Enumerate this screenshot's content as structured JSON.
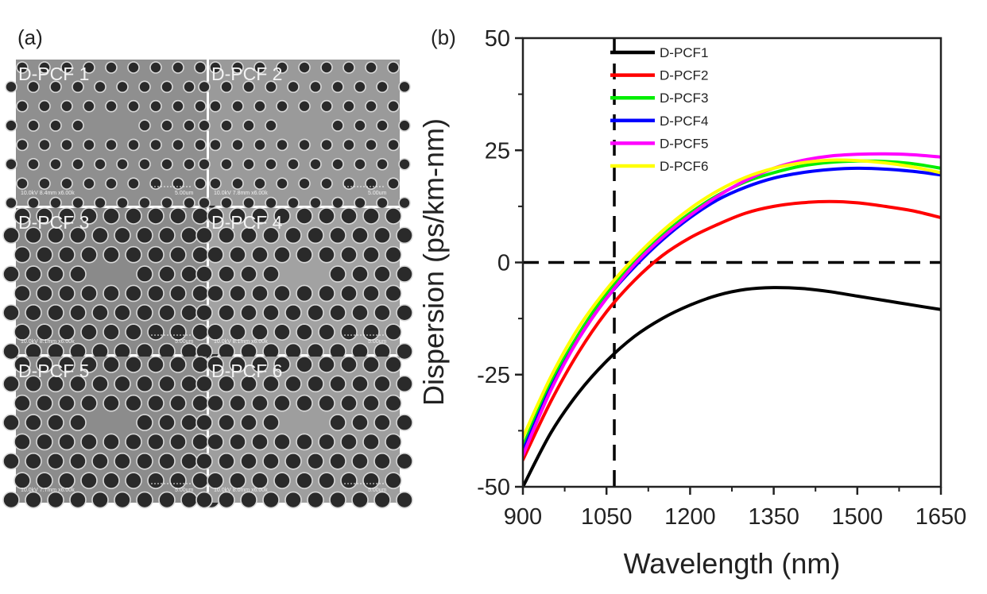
{
  "panel_a": {
    "label": "(a)",
    "images": [
      {
        "label": "D-PCF 1",
        "bar_text": "10.0kV 8.4mm x6.00k",
        "scale_text": "5.00um",
        "tone": "#8f8f8f"
      },
      {
        "label": "D-PCF 2",
        "bar_text": "10.0kV 7.8mm x6.00k",
        "scale_text": "5.00um",
        "tone": "#9a9a9a"
      },
      {
        "label": "D-PCF 3",
        "bar_text": "10.0kV 8.1mm x6.00k",
        "scale_text": "5.00um",
        "tone": "#8a8a8a"
      },
      {
        "label": "D-PCF 4",
        "bar_text": "10.0kV 8.1mm x6.00k",
        "scale_text": "5.00um",
        "tone": "#a2a2a2"
      },
      {
        "label": "D-PCF 5",
        "bar_text": "10.0kV 7.7mm x6.00k",
        "scale_text": "5.00um",
        "tone": "#8c8c8c"
      },
      {
        "label": "D-PCF 6",
        "bar_text": "10.0kV 8.0mm x6.00k",
        "scale_text": "5.00um",
        "tone": "#9e9e9e"
      }
    ]
  },
  "chart_data": {
    "type": "line",
    "panel_label": "(b)",
    "xlabel": "Wavelength (nm)",
    "ylabel": "Dispersion (ps/km-nm)",
    "xlim": [
      900,
      1650
    ],
    "ylim": [
      -50,
      50
    ],
    "xticks": [
      900,
      1050,
      1200,
      1350,
      1500,
      1650
    ],
    "yticks": [
      -50,
      -25,
      0,
      25,
      50
    ],
    "reference_lines": [
      {
        "orientation": "horizontal",
        "value": 0,
        "style": "dashed",
        "color": "#000000"
      },
      {
        "orientation": "vertical",
        "value": 1064,
        "style": "dashed",
        "color": "#000000"
      }
    ],
    "legend_position": "top-left",
    "series": [
      {
        "name": "D-PCF1",
        "color": "#000000",
        "x": [
          900,
          950,
          1000,
          1050,
          1100,
          1150,
          1200,
          1250,
          1300,
          1350,
          1400,
          1450,
          1500,
          1550,
          1600,
          1650
        ],
        "y": [
          -50,
          -38,
          -29,
          -22,
          -16.5,
          -12.5,
          -9.5,
          -7.3,
          -6,
          -5.6,
          -5.8,
          -6.5,
          -7.5,
          -8.5,
          -9.5,
          -10.5
        ]
      },
      {
        "name": "D-PCF2",
        "color": "#ff0000",
        "x": [
          900,
          950,
          1000,
          1050,
          1100,
          1150,
          1200,
          1250,
          1300,
          1350,
          1400,
          1450,
          1500,
          1550,
          1600,
          1650
        ],
        "y": [
          -44,
          -31,
          -20,
          -11,
          -4,
          1.5,
          5.5,
          8.5,
          11,
          12.5,
          13.3,
          13.6,
          13.3,
          12.5,
          11.5,
          10
        ]
      },
      {
        "name": "D-PCF3",
        "color": "#00ee00",
        "x": [
          900,
          950,
          1000,
          1050,
          1100,
          1150,
          1200,
          1250,
          1300,
          1350,
          1400,
          1450,
          1500,
          1550,
          1600,
          1650
        ],
        "y": [
          -41,
          -27,
          -16,
          -7,
          0,
          6,
          11,
          15,
          18,
          20,
          21.5,
          22.3,
          22.6,
          22.5,
          22,
          21
        ]
      },
      {
        "name": "D-PCF4",
        "color": "#0000ff",
        "x": [
          900,
          950,
          1000,
          1050,
          1100,
          1150,
          1200,
          1250,
          1300,
          1350,
          1400,
          1450,
          1500,
          1550,
          1600,
          1650
        ],
        "y": [
          -42,
          -28,
          -17,
          -8,
          -1,
          5,
          10,
          14,
          16.8,
          18.8,
          20,
          20.7,
          21,
          20.8,
          20.3,
          19.5
        ]
      },
      {
        "name": "D-PCF5",
        "color": "#ff00ff",
        "x": [
          900,
          950,
          1000,
          1050,
          1100,
          1150,
          1200,
          1250,
          1300,
          1350,
          1400,
          1450,
          1500,
          1550,
          1600,
          1650
        ],
        "y": [
          -43,
          -28.5,
          -17,
          -8,
          -0.5,
          5.5,
          10.5,
          14.8,
          18.3,
          21,
          22.7,
          23.7,
          24.1,
          24.2,
          24,
          23.5
        ]
      },
      {
        "name": "D-PCF6",
        "color": "#ffff00",
        "x": [
          900,
          950,
          1000,
          1050,
          1100,
          1150,
          1200,
          1250,
          1300,
          1350,
          1400,
          1450,
          1500,
          1550,
          1600,
          1650
        ],
        "y": [
          -39,
          -25.5,
          -14.5,
          -6,
          1,
          7,
          12,
          16,
          19,
          21,
          22.2,
          22.8,
          22.7,
          22.2,
          21.3,
          20
        ]
      }
    ]
  }
}
